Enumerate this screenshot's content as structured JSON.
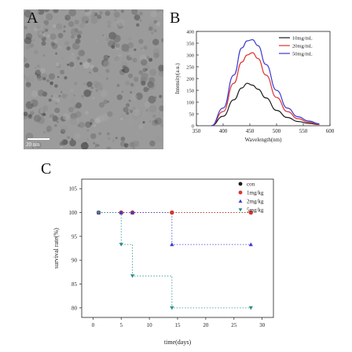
{
  "panels": {
    "a_label": "A",
    "b_label": "B",
    "c_label": "C",
    "scale_bar": "20 nm"
  },
  "colors": {
    "c_black": "#1a1a1a",
    "c_red": "#e03030",
    "c_blue": "#3a3ad0",
    "c_teal": "#2a8f8f"
  },
  "chart_data": [
    {
      "type": "line",
      "panel": "B",
      "xlabel": "Wavelength(nm)",
      "ylabel": "Intensity(a.u.)",
      "xlim": [
        350,
        600
      ],
      "ylim": [
        0,
        400
      ],
      "xticks": [
        350,
        400,
        450,
        500,
        550,
        600
      ],
      "yticks": [
        0,
        50,
        100,
        150,
        200,
        250,
        300,
        350,
        400
      ],
      "legend_position": "top-right",
      "series": [
        {
          "name": "10mg/mL",
          "color": "#1a1a1a",
          "x": [
            378,
            400,
            420,
            435,
            445,
            455,
            465,
            480,
            500,
            520,
            540,
            560,
            580
          ],
          "y": [
            0,
            40,
            110,
            160,
            180,
            172,
            155,
            118,
            65,
            35,
            18,
            10,
            5
          ]
        },
        {
          "name": "20mg/mL",
          "color": "#e03030",
          "x": [
            378,
            400,
            420,
            435,
            445,
            455,
            465,
            480,
            500,
            520,
            540,
            560,
            580
          ],
          "y": [
            0,
            60,
            180,
            270,
            300,
            310,
            285,
            215,
            120,
            60,
            30,
            15,
            5
          ]
        },
        {
          "name": "50mg/mL",
          "color": "#3a3ad0",
          "x": [
            378,
            400,
            420,
            435,
            445,
            455,
            465,
            480,
            500,
            520,
            540,
            560,
            580
          ],
          "y": [
            0,
            75,
            215,
            330,
            360,
            365,
            340,
            260,
            150,
            75,
            38,
            20,
            8
          ]
        }
      ]
    },
    {
      "type": "scatter",
      "panel": "C",
      "xlabel": "time(days)",
      "ylabel": "survival rate(%)",
      "xlim": [
        -2,
        32
      ],
      "ylim": [
        78,
        107
      ],
      "xticks": [
        0,
        5,
        10,
        15,
        20,
        25,
        30
      ],
      "yticks": [
        80,
        85,
        90,
        95,
        100,
        105
      ],
      "legend_position": "top-right",
      "grid": false,
      "series": [
        {
          "name": "con",
          "marker": "circle",
          "color": "#1a1a1a",
          "x": [
            1,
            5,
            7,
            14,
            28
          ],
          "y": [
            100,
            100,
            100,
            100,
            100
          ]
        },
        {
          "name": "1mg/kg",
          "marker": "circle",
          "color": "#e03030",
          "x": [
            1,
            5,
            7,
            14,
            28
          ],
          "y": [
            100,
            100,
            100,
            100,
            100
          ]
        },
        {
          "name": "2mg/kg",
          "marker": "triangle-up",
          "color": "#3a3ad0",
          "x": [
            1,
            5,
            7,
            14,
            28
          ],
          "y": [
            100,
            100,
            100,
            93.3,
            93.3
          ]
        },
        {
          "name": "5mg/kg",
          "marker": "triangle-down",
          "color": "#2a8f8f",
          "x": [
            1,
            5,
            7,
            14,
            28
          ],
          "y": [
            100,
            93.3,
            86.7,
            80,
            80
          ]
        }
      ]
    }
  ]
}
